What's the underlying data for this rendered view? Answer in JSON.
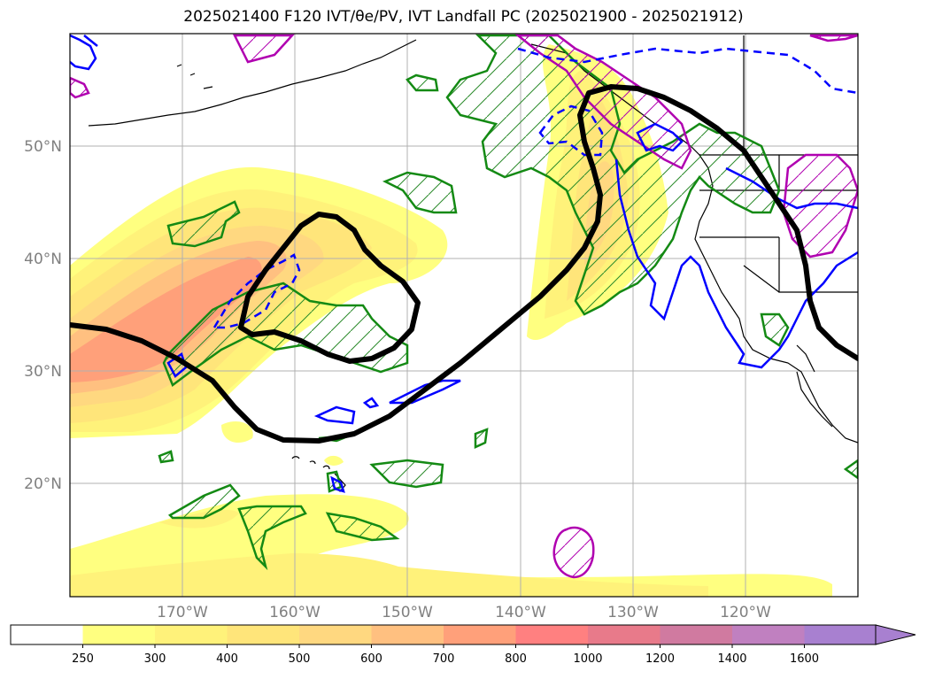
{
  "title": "2025021400 F120 IVT/θe/PV, IVT Landfall PC (2025021900 - 2025021912)",
  "map": {
    "lat_labels": [
      "50°N",
      "40°N",
      "30°N",
      "20°N"
    ],
    "lon_labels": [
      "170°W",
      "160°W",
      "150°W",
      "140°W",
      "130°W",
      "120°W"
    ],
    "region": "North Pacific / western North America",
    "layers": {
      "ivt_fill": "IVT shading (yellow to red)",
      "theta_e_contour": "black thick contour",
      "pv_contours": "blue solid / dashed",
      "landfall_pc": "green hatched contours",
      "magenta": "magenta hatched contours"
    }
  },
  "colorbar": {
    "levels": [
      "250",
      "300",
      "400",
      "500",
      "600",
      "700",
      "800",
      "1000",
      "1200",
      "1400",
      "1600"
    ],
    "colors": [
      "#ffffff",
      "#ffff80",
      "#fff27a",
      "#ffe57a",
      "#ffd880",
      "#ffc080",
      "#ffa07a",
      "#ff8080",
      "#e87a8a",
      "#d07aa0",
      "#c080c0",
      "#a880d0"
    ],
    "extend": "max"
  }
}
